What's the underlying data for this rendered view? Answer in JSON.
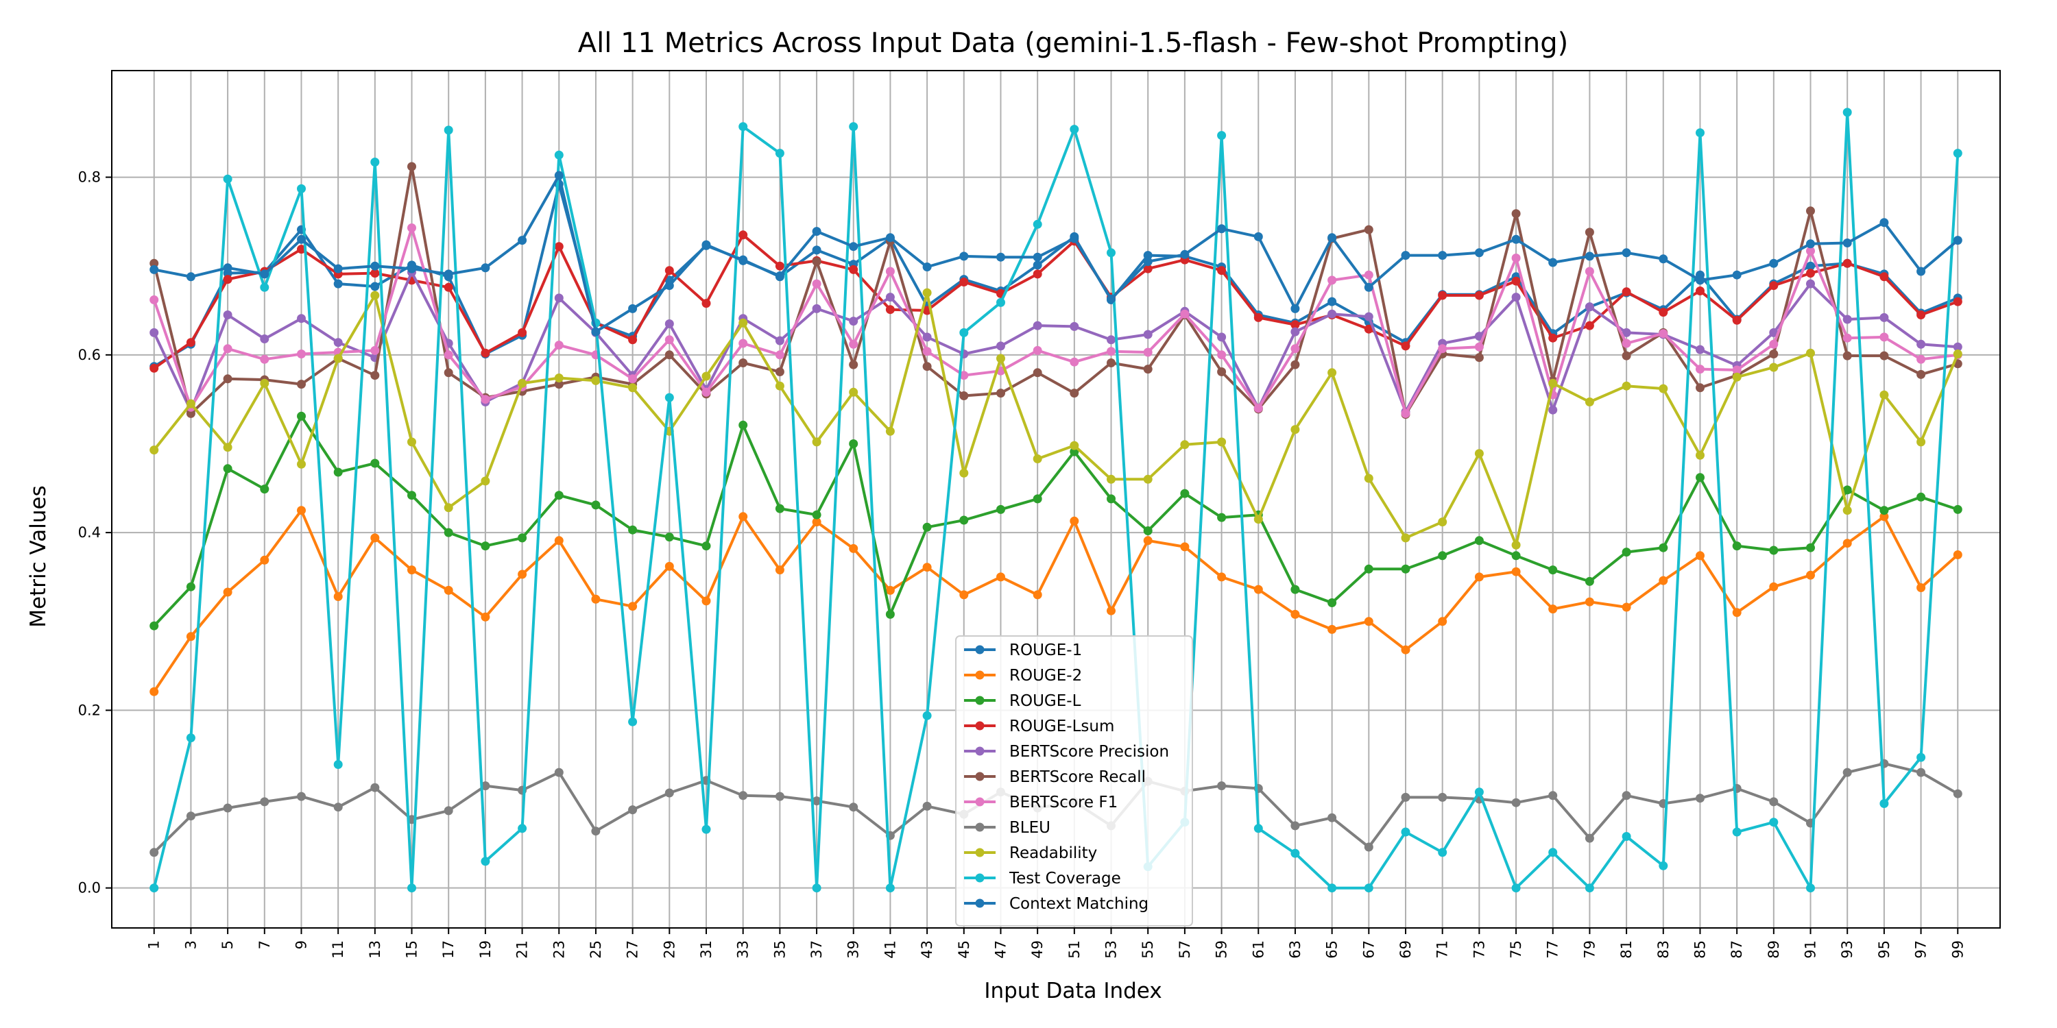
{
  "chart_data": {
    "type": "line",
    "title": "All 11 Metrics Across Input Data (gemini-1.5-flash - Few-shot Prompting)",
    "xlabel": "Input Data Index",
    "ylabel": "Metric Values",
    "ylim": [
      -0.045,
      0.92
    ],
    "yticks": [
      "0.0",
      "0.2",
      "0.4",
      "0.6",
      "0.8"
    ],
    "ytick_values": [
      0.0,
      0.2,
      0.4,
      0.6,
      0.8
    ],
    "grid": true,
    "legend_position": "lower-center",
    "x": [
      1,
      3,
      5,
      7,
      9,
      11,
      13,
      15,
      17,
      19,
      21,
      23,
      25,
      27,
      29,
      31,
      33,
      35,
      37,
      39,
      41,
      43,
      45,
      47,
      49,
      51,
      53,
      55,
      57,
      59,
      61,
      63,
      65,
      67,
      69,
      71,
      73,
      75,
      77,
      79,
      81,
      83,
      85,
      87,
      89,
      91,
      93,
      95,
      97,
      99
    ],
    "series": [
      {
        "name": "ROUGE-1",
        "color": "#1f77b4",
        "values": [
          0.587,
          0.612,
          0.692,
          0.693,
          0.741,
          0.68,
          0.677,
          0.701,
          0.688,
          0.601,
          0.622,
          0.792,
          0.636,
          0.621,
          0.684,
          0.723,
          0.707,
          0.688,
          0.718,
          0.702,
          0.731,
          0.655,
          0.685,
          0.672,
          0.701,
          0.733,
          0.662,
          0.712,
          0.711,
          0.699,
          0.645,
          0.636,
          0.66,
          0.637,
          0.614,
          0.668,
          0.668,
          0.688,
          0.624,
          0.654,
          0.67,
          0.651,
          0.69,
          0.64,
          0.68,
          0.7,
          0.703,
          0.691,
          0.647,
          0.664
        ]
      },
      {
        "name": "ROUGE-2",
        "color": "#ff7f0e",
        "values": [
          0.221,
          0.283,
          0.333,
          0.369,
          0.425,
          0.328,
          0.394,
          0.358,
          0.335,
          0.305,
          0.353,
          0.391,
          0.325,
          0.317,
          0.362,
          0.323,
          0.418,
          0.358,
          0.412,
          0.382,
          0.335,
          0.361,
          0.33,
          0.35,
          0.33,
          0.413,
          0.312,
          0.391,
          0.384,
          0.35,
          0.336,
          0.308,
          0.291,
          0.3,
          0.268,
          0.3,
          0.35,
          0.356,
          0.314,
          0.322,
          0.316,
          0.346,
          0.374,
          0.31,
          0.339,
          0.352,
          0.388,
          0.418,
          0.338,
          0.375
        ]
      },
      {
        "name": "ROUGE-L",
        "color": "#2ca02c",
        "values": [
          0.295,
          0.339,
          0.472,
          0.449,
          0.531,
          0.468,
          0.478,
          0.442,
          0.4,
          0.385,
          0.394,
          0.442,
          0.431,
          0.403,
          0.395,
          0.385,
          0.521,
          0.427,
          0.42,
          0.5,
          0.308,
          0.406,
          0.414,
          0.426,
          0.438,
          0.491,
          0.438,
          0.402,
          0.444,
          0.417,
          0.42,
          0.336,
          0.321,
          0.359,
          0.359,
          0.374,
          0.391,
          0.374,
          0.358,
          0.345,
          0.378,
          0.383,
          0.462,
          0.385,
          0.38,
          0.383,
          0.448,
          0.425,
          0.44,
          0.426
        ]
      },
      {
        "name": "ROUGE-Lsum",
        "color": "#d62728",
        "values": [
          0.585,
          0.614,
          0.685,
          0.694,
          0.719,
          0.691,
          0.692,
          0.684,
          0.676,
          0.602,
          0.625,
          0.722,
          0.636,
          0.617,
          0.695,
          0.658,
          0.735,
          0.7,
          0.706,
          0.696,
          0.651,
          0.65,
          0.682,
          0.669,
          0.691,
          0.728,
          0.665,
          0.697,
          0.707,
          0.695,
          0.642,
          0.634,
          0.645,
          0.629,
          0.61,
          0.667,
          0.667,
          0.683,
          0.619,
          0.633,
          0.671,
          0.648,
          0.672,
          0.639,
          0.678,
          0.692,
          0.703,
          0.688,
          0.645,
          0.66
        ]
      },
      {
        "name": "BERTScore Precision",
        "color": "#9467bd",
        "values": [
          0.625,
          0.537,
          0.645,
          0.618,
          0.641,
          0.614,
          0.597,
          0.693,
          0.613,
          0.547,
          0.568,
          0.664,
          0.625,
          0.577,
          0.635,
          0.561,
          0.641,
          0.616,
          0.652,
          0.638,
          0.665,
          0.62,
          0.601,
          0.61,
          0.633,
          0.632,
          0.617,
          0.623,
          0.649,
          0.62,
          0.54,
          0.626,
          0.646,
          0.643,
          0.536,
          0.613,
          0.621,
          0.665,
          0.538,
          0.654,
          0.625,
          0.623,
          0.606,
          0.588,
          0.625,
          0.68,
          0.64,
          0.642,
          0.612,
          0.609
        ]
      },
      {
        "name": "BERTScore Recall",
        "color": "#8c564b",
        "values": [
          0.703,
          0.534,
          0.573,
          0.572,
          0.567,
          0.596,
          0.577,
          0.812,
          0.58,
          0.552,
          0.559,
          0.567,
          0.575,
          0.567,
          0.6,
          0.556,
          0.591,
          0.581,
          0.705,
          0.589,
          0.728,
          0.587,
          0.554,
          0.557,
          0.58,
          0.557,
          0.591,
          0.584,
          0.645,
          0.581,
          0.539,
          0.589,
          0.731,
          0.741,
          0.533,
          0.601,
          0.597,
          0.759,
          0.571,
          0.738,
          0.599,
          0.625,
          0.563,
          0.577,
          0.601,
          0.762,
          0.599,
          0.599,
          0.578,
          0.59
        ]
      },
      {
        "name": "BERTScore F1",
        "color": "#e377c2",
        "values": [
          0.662,
          0.541,
          0.607,
          0.595,
          0.601,
          0.603,
          0.605,
          0.743,
          0.6,
          0.55,
          0.564,
          0.611,
          0.6,
          0.573,
          0.617,
          0.558,
          0.613,
          0.6,
          0.68,
          0.612,
          0.694,
          0.604,
          0.577,
          0.582,
          0.605,
          0.592,
          0.604,
          0.603,
          0.646,
          0.6,
          0.54,
          0.607,
          0.684,
          0.69,
          0.534,
          0.607,
          0.609,
          0.709,
          0.555,
          0.694,
          0.613,
          0.624,
          0.584,
          0.583,
          0.612,
          0.717,
          0.619,
          0.62,
          0.595,
          0.6
        ]
      },
      {
        "name": "BLEU",
        "color": "#7f7f7f",
        "values": [
          0.04,
          0.081,
          0.09,
          0.097,
          0.103,
          0.091,
          0.113,
          0.077,
          0.087,
          0.115,
          0.11,
          0.13,
          0.064,
          0.088,
          0.107,
          0.121,
          0.104,
          0.103,
          0.098,
          0.091,
          0.059,
          0.092,
          0.083,
          0.108,
          0.09,
          0.097,
          0.07,
          0.12,
          0.109,
          0.115,
          0.112,
          0.07,
          0.079,
          0.046,
          0.102,
          0.102,
          0.1,
          0.096,
          0.104,
          0.056,
          0.104,
          0.095,
          0.101,
          0.112,
          0.097,
          0.073,
          0.13,
          0.14,
          0.13,
          0.106
        ]
      },
      {
        "name": "Readability",
        "color": "#bcbd22",
        "values": [
          0.493,
          0.545,
          0.496,
          0.568,
          0.477,
          0.596,
          0.667,
          0.502,
          0.428,
          0.458,
          0.568,
          0.574,
          0.571,
          0.563,
          0.514,
          0.576,
          0.636,
          0.565,
          0.502,
          0.558,
          0.514,
          0.67,
          0.467,
          0.596,
          0.483,
          0.498,
          0.46,
          0.46,
          0.499,
          0.502,
          0.415,
          0.516,
          0.58,
          0.461,
          0.394,
          0.412,
          0.489,
          0.386,
          0.568,
          0.547,
          0.565,
          0.562,
          0.487,
          0.575,
          0.586,
          0.602,
          0.425,
          0.555,
          0.502,
          0.601
        ]
      },
      {
        "name": "Test Coverage",
        "color": "#17becf",
        "values": [
          0.0,
          0.169,
          0.798,
          0.676,
          0.787,
          0.139,
          0.817,
          0.0,
          0.853,
          0.03,
          0.067,
          0.825,
          0.636,
          0.187,
          0.552,
          0.066,
          0.857,
          0.827,
          0.0,
          0.857,
          0.0,
          0.194,
          0.625,
          0.659,
          0.747,
          0.854,
          0.715,
          0.024,
          0.074,
          0.847,
          0.067,
          0.039,
          0.0,
          0.0,
          0.063,
          0.04,
          0.108,
          0.0,
          0.04,
          0.0,
          0.058,
          0.025,
          0.85,
          0.063,
          0.074,
          0.0,
          0.873,
          0.095,
          0.147,
          0.827
        ]
      },
      {
        "name": "Context Matching",
        "color": "#1f77b4",
        "values": [
          0.696,
          0.688,
          0.698,
          0.691,
          0.73,
          0.697,
          0.7,
          0.697,
          0.691,
          0.698,
          0.729,
          0.802,
          0.626,
          0.652,
          0.678,
          0.724,
          0.706,
          0.689,
          0.739,
          0.722,
          0.732,
          0.699,
          0.711,
          0.71,
          0.71,
          0.731,
          0.663,
          0.705,
          0.713,
          0.742,
          0.733,
          0.652,
          0.732,
          0.676,
          0.712,
          0.712,
          0.715,
          0.73,
          0.704,
          0.711,
          0.715,
          0.708,
          0.684,
          0.69,
          0.703,
          0.725,
          0.726,
          0.749,
          0.694,
          0.729
        ]
      }
    ]
  }
}
